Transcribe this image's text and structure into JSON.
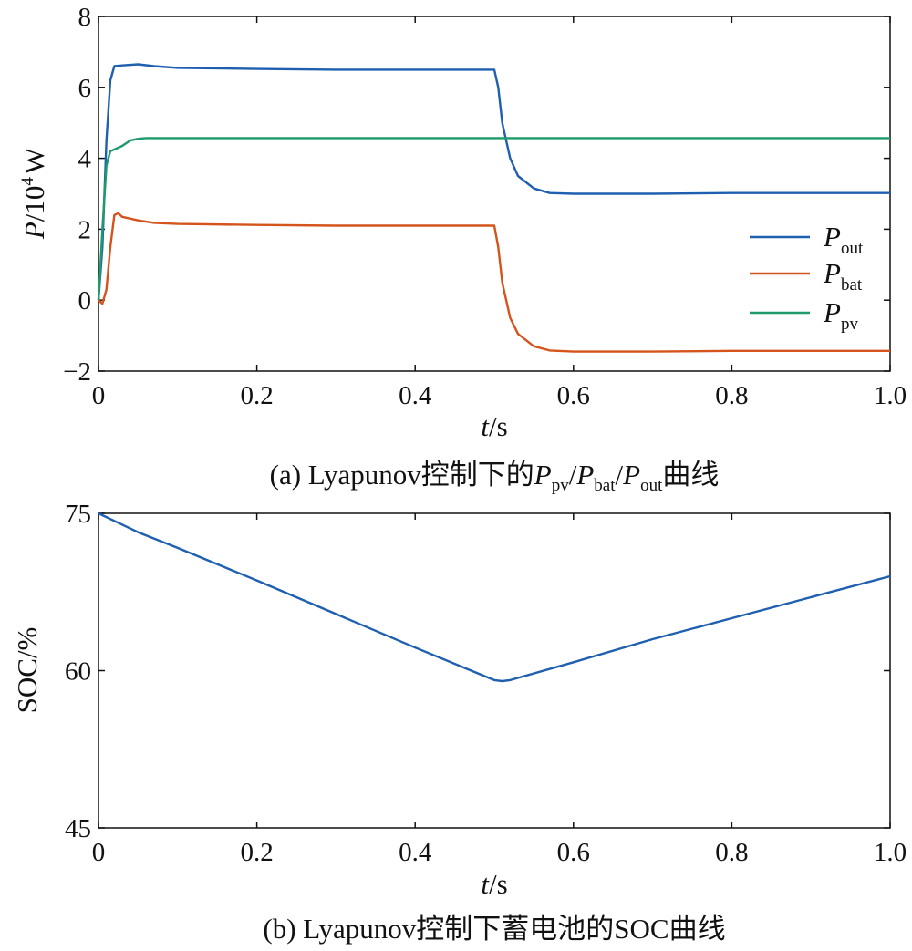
{
  "chart_data": [
    {
      "id": "a",
      "type": "line",
      "caption": {
        "prefix": "(a) Lyapunov控制下的",
        "p1_var": "P",
        "p1_sub": "pv",
        "sep1": "/",
        "p2_var": "P",
        "p2_sub": "bat",
        "sep2": "/",
        "p3_var": "P",
        "p3_sub": "out",
        "suffix": "曲线"
      },
      "xlabel": {
        "var": "t",
        "unit": "/s"
      },
      "ylabel": {
        "var": "P",
        "unit_pre": "/10",
        "unit_sup": "4",
        "unit_post": "W"
      },
      "xlim": [
        0,
        1.0
      ],
      "ylim": [
        -2,
        8
      ],
      "xticks": [
        "0",
        "0.2",
        "0.4",
        "0.6",
        "0.8",
        "1.0"
      ],
      "yticks": [
        "−2",
        "0",
        "2",
        "4",
        "6",
        "8"
      ],
      "grid": false,
      "legend_position": "right",
      "series": [
        {
          "name": "P_out",
          "label_var": "P",
          "label_sub": "out",
          "color": "#1f5fb0",
          "points": [
            [
              0,
              0
            ],
            [
              0.005,
              1.5
            ],
            [
              0.01,
              4.5
            ],
            [
              0.015,
              6.2
            ],
            [
              0.02,
              6.6
            ],
            [
              0.03,
              6.62
            ],
            [
              0.05,
              6.65
            ],
            [
              0.07,
              6.6
            ],
            [
              0.1,
              6.55
            ],
            [
              0.2,
              6.52
            ],
            [
              0.3,
              6.5
            ],
            [
              0.4,
              6.5
            ],
            [
              0.5,
              6.5
            ],
            [
              0.505,
              6.0
            ],
            [
              0.51,
              5.0
            ],
            [
              0.52,
              4.0
            ],
            [
              0.53,
              3.5
            ],
            [
              0.55,
              3.15
            ],
            [
              0.57,
              3.02
            ],
            [
              0.6,
              3.0
            ],
            [
              0.7,
              3.0
            ],
            [
              0.8,
              3.02
            ],
            [
              0.9,
              3.02
            ],
            [
              1.0,
              3.02
            ]
          ]
        },
        {
          "name": "P_bat",
          "label_var": "P",
          "label_sub": "bat",
          "color": "#d4541c",
          "points": [
            [
              0,
              0
            ],
            [
              0.005,
              -0.1
            ],
            [
              0.01,
              0.3
            ],
            [
              0.015,
              1.5
            ],
            [
              0.02,
              2.4
            ],
            [
              0.025,
              2.45
            ],
            [
              0.03,
              2.35
            ],
            [
              0.05,
              2.25
            ],
            [
              0.07,
              2.18
            ],
            [
              0.1,
              2.15
            ],
            [
              0.2,
              2.12
            ],
            [
              0.3,
              2.1
            ],
            [
              0.4,
              2.1
            ],
            [
              0.5,
              2.1
            ],
            [
              0.505,
              1.5
            ],
            [
              0.51,
              0.5
            ],
            [
              0.52,
              -0.5
            ],
            [
              0.53,
              -0.95
            ],
            [
              0.55,
              -1.3
            ],
            [
              0.57,
              -1.42
            ],
            [
              0.6,
              -1.45
            ],
            [
              0.7,
              -1.45
            ],
            [
              0.8,
              -1.43
            ],
            [
              0.9,
              -1.43
            ],
            [
              1.0,
              -1.43
            ]
          ]
        },
        {
          "name": "P_pv",
          "label_var": "P",
          "label_sub": "pv",
          "color": "#1f9a6a",
          "points": [
            [
              0,
              0
            ],
            [
              0.005,
              2.0
            ],
            [
              0.01,
              3.8
            ],
            [
              0.015,
              4.2
            ],
            [
              0.02,
              4.25
            ],
            [
              0.03,
              4.35
            ],
            [
              0.04,
              4.5
            ],
            [
              0.05,
              4.55
            ],
            [
              0.06,
              4.57
            ],
            [
              0.1,
              4.57
            ],
            [
              0.3,
              4.57
            ],
            [
              0.5,
              4.57
            ],
            [
              0.7,
              4.57
            ],
            [
              1.0,
              4.57
            ]
          ]
        }
      ]
    },
    {
      "id": "b",
      "type": "line",
      "caption": {
        "text": "(b) Lyapunov控制下蓄电池的SOC曲线"
      },
      "xlabel": {
        "var": "t",
        "unit": "/s"
      },
      "ylabel": {
        "text": "SOC/%"
      },
      "xlim": [
        0,
        1.0
      ],
      "ylim": [
        45,
        75
      ],
      "xticks": [
        "0",
        "0.2",
        "0.4",
        "0.6",
        "0.8",
        "1.0"
      ],
      "yticks": [
        "45",
        "60",
        "75"
      ],
      "grid": false,
      "series": [
        {
          "color": "#1f5fb0",
          "points": [
            [
              0,
              75
            ],
            [
              0.05,
              73.2
            ],
            [
              0.1,
              71.7
            ],
            [
              0.2,
              68.6
            ],
            [
              0.3,
              65.4
            ],
            [
              0.4,
              62.2
            ],
            [
              0.5,
              59.1
            ],
            [
              0.51,
              59.0
            ],
            [
              0.52,
              59.1
            ],
            [
              0.6,
              60.8
            ],
            [
              0.7,
              63.0
            ],
            [
              0.8,
              65.0
            ],
            [
              0.9,
              67.0
            ],
            [
              1.0,
              69.0
            ]
          ]
        }
      ]
    }
  ]
}
